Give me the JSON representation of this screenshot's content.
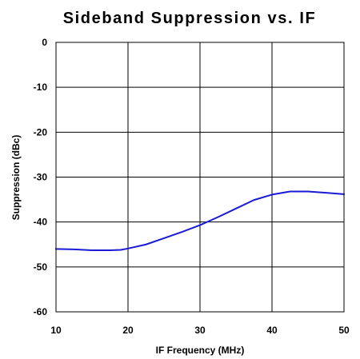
{
  "chart_data": {
    "type": "line",
    "title": "Sideband Suppression vs. IF",
    "xlabel": "IF Frequency (MHz)",
    "ylabel": "Suppression (dBc)",
    "xlim": [
      10,
      50
    ],
    "ylim": [
      -60,
      0
    ],
    "xticks": [
      10,
      20,
      30,
      40,
      50
    ],
    "yticks": [
      0,
      -10,
      -20,
      -30,
      -40,
      -50,
      -60
    ],
    "xtick_labels": [
      "10",
      "20",
      "30",
      "40",
      "50"
    ],
    "ytick_labels": [
      "0",
      "-10",
      "-20",
      "-30",
      "-40",
      "-50",
      "-60"
    ],
    "grid": true,
    "series": [
      {
        "color": "#1a1ad6",
        "x": [
          10,
          12.5,
          15,
          17.5,
          19,
          20,
          22.5,
          25,
          27.5,
          30,
          32.5,
          35,
          37.5,
          40,
          42.5,
          45,
          47.5,
          50
        ],
        "y": [
          -46.0,
          -46.1,
          -46.3,
          -46.3,
          -46.2,
          -45.9,
          -45.0,
          -43.6,
          -42.2,
          -40.7,
          -38.9,
          -37.0,
          -35.1,
          -33.9,
          -33.2,
          -33.2,
          -33.5,
          -33.8
        ]
      }
    ]
  }
}
